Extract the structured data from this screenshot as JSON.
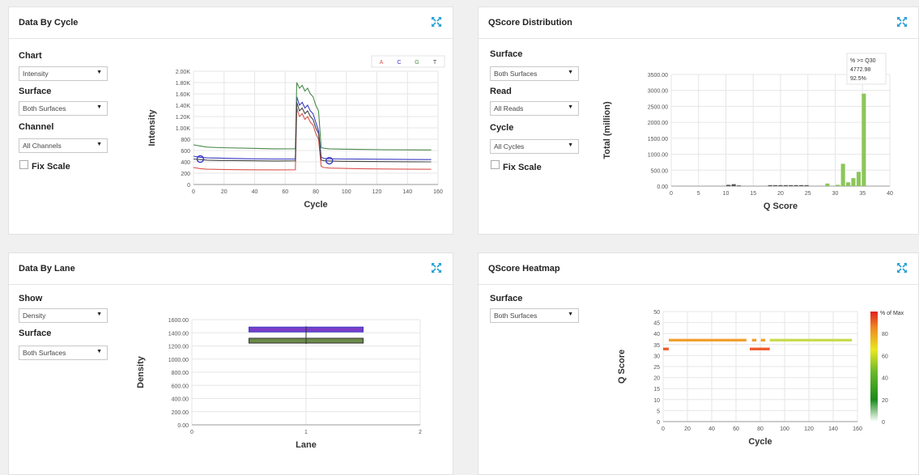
{
  "colors": {
    "A": "#d9534f",
    "C": "#3b3bc4",
    "G": "#4a8a4a",
    "T": "#444444",
    "green": "#8cc65a",
    "accent": "#2a9fd6"
  },
  "icons": {
    "expand": "expand-arrows-icon"
  },
  "cycle_panel": {
    "title": "Data By Cycle",
    "chart_label": "Chart",
    "chart_value": "Intensity",
    "surface_label": "Surface",
    "surface_value": "Both Surfaces",
    "channel_label": "Channel",
    "channel_value": "All Channels",
    "fix_scale": "Fix Scale",
    "legend": [
      "A",
      "C",
      "G",
      "T"
    ]
  },
  "qscore_panel": {
    "title": "QScore Distribution",
    "surface_label": "Surface",
    "surface_value": "Both Surfaces",
    "read_label": "Read",
    "read_value": "All Reads",
    "cycle_label": "Cycle",
    "cycle_value": "All Cycles",
    "fix_scale": "Fix Scale",
    "annotation": [
      "% >= Q30",
      "4772.98",
      "92.5%"
    ]
  },
  "lane_panel": {
    "title": "Data By Lane",
    "show_label": "Show",
    "show_value": "Density",
    "surface_label": "Surface",
    "surface_value": "Both Surfaces"
  },
  "heatmap_panel": {
    "title": "QScore Heatmap",
    "surface_label": "Surface",
    "surface_value": "Both Surfaces",
    "legend_title": "% of Max"
  },
  "chart_data": [
    {
      "type": "line",
      "xlabel": "Cycle",
      "ylabel": "Intensity",
      "xlim": [
        0,
        180
      ],
      "ylim": [
        0,
        2000
      ],
      "xticks": [
        "0",
        "20",
        "40",
        "60",
        "80",
        "100",
        "120",
        "140",
        "160"
      ],
      "yticks": [
        "0",
        "200",
        "400",
        "600",
        "800",
        "1.00K",
        "1.20K",
        "1.40K",
        "1.60K",
        "1.80K",
        "2.00K"
      ],
      "x": [
        0,
        5,
        10,
        20,
        40,
        60,
        75,
        76,
        78,
        80,
        82,
        84,
        86,
        88,
        90,
        92,
        94,
        96,
        100,
        110,
        120,
        140,
        160,
        175
      ],
      "series": [
        {
          "name": "A",
          "values": [
            300,
            280,
            270,
            265,
            260,
            258,
            260,
            1350,
            1200,
            1250,
            1150,
            1200,
            1100,
            1050,
            900,
            800,
            320,
            300,
            290,
            285,
            280,
            275,
            270,
            268
          ]
        },
        {
          "name": "C",
          "values": [
            500,
            480,
            470,
            465,
            455,
            450,
            452,
            1550,
            1400,
            1450,
            1350,
            1400,
            1300,
            1250,
            1100,
            950,
            480,
            460,
            455,
            450,
            448,
            445,
            442,
            440
          ]
        },
        {
          "name": "G",
          "values": [
            700,
            680,
            660,
            650,
            640,
            630,
            632,
            1800,
            1700,
            1750,
            1650,
            1700,
            1600,
            1550,
            1400,
            1300,
            650,
            640,
            630,
            625,
            620,
            615,
            612,
            610
          ]
        },
        {
          "name": "T",
          "values": [
            450,
            440,
            430,
            425,
            420,
            415,
            418,
            1450,
            1300,
            1350,
            1250,
            1300,
            1200,
            1150,
            1000,
            900,
            430,
            420,
            415,
            410,
            408,
            405,
            402,
            400
          ]
        }
      ]
    },
    {
      "type": "bar",
      "xlabel": "Q Score",
      "ylabel": "Total (million)",
      "xlim": [
        0,
        42
      ],
      "ylim": [
        0,
        3500
      ],
      "xticks": [
        "0",
        "5",
        "10",
        "15",
        "20",
        "25",
        "30",
        "35",
        "40"
      ],
      "yticks": [
        "0.00",
        "500.00",
        "1000.00",
        "1500.00",
        "2000.00",
        "2500.00",
        "3000.00",
        "3500.00"
      ],
      "x": [
        11,
        12,
        13,
        19,
        20,
        21,
        22,
        23,
        24,
        25,
        26,
        30,
        32,
        33,
        34,
        35,
        36,
        37
      ],
      "values": [
        40,
        60,
        20,
        30,
        30,
        30,
        30,
        30,
        30,
        30,
        30,
        80,
        40,
        700,
        120,
        250,
        450,
        2900
      ]
    },
    {
      "type": "line",
      "xlabel": "Lane",
      "ylabel": "Density",
      "xlim": [
        0,
        2
      ],
      "ylim": [
        0,
        1600
      ],
      "xticks": [
        "0",
        "1",
        "2"
      ],
      "yticks": [
        "0.00",
        "200.00",
        "400.00",
        "600.00",
        "800.00",
        "1000.00",
        "1200.00",
        "1400.00",
        "1600.00"
      ],
      "x": [
        0.5,
        1.5
      ],
      "series": [
        {
          "name": "raw",
          "values": [
            1450,
            1450
          ]
        },
        {
          "name": "pf",
          "values": [
            1280,
            1280
          ]
        }
      ]
    },
    {
      "type": "heatmap",
      "xlabel": "Cycle",
      "ylabel": "Q Score",
      "xlim": [
        0,
        175
      ],
      "ylim": [
        0,
        50
      ],
      "xticks": [
        "0",
        "20",
        "40",
        "60",
        "80",
        "100",
        "120",
        "140",
        "160"
      ],
      "yticks": [
        "0",
        "5",
        "10",
        "15",
        "20",
        "25",
        "30",
        "35",
        "40",
        "45",
        "50"
      ],
      "legend_ticks": [
        "0",
        "20",
        "40",
        "60",
        "80"
      ],
      "cells": [
        {
          "x0": 0,
          "x1": 5,
          "y": 33,
          "pct": 80
        },
        {
          "x0": 5,
          "x1": 75,
          "y": 37,
          "pct": 70
        },
        {
          "x0": 80,
          "x1": 84,
          "y": 37,
          "pct": 75
        },
        {
          "x0": 88,
          "x1": 92,
          "y": 37,
          "pct": 75
        },
        {
          "x0": 96,
          "x1": 170,
          "y": 37,
          "pct": 45
        },
        {
          "x0": 78,
          "x1": 96,
          "y": 33,
          "pct": 85
        }
      ]
    }
  ]
}
